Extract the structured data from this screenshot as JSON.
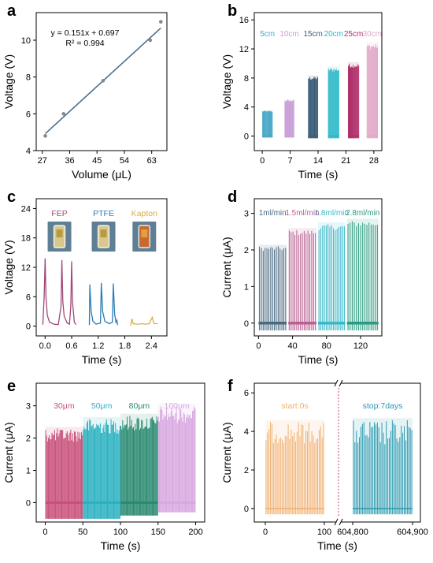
{
  "chart_data": [
    {
      "panel": "a",
      "type": "scatter",
      "xlabel": "Volume (μL)",
      "ylabel": "Voltage (V)",
      "xlim": [
        25,
        68
      ],
      "ylim": [
        4,
        11.5
      ],
      "xticks": [
        27,
        36,
        45,
        54,
        63
      ],
      "yticks": [
        4,
        6,
        8,
        10
      ],
      "points": [
        {
          "x": 28,
          "y": 4.8
        },
        {
          "x": 34,
          "y": 6.0
        },
        {
          "x": 47,
          "y": 7.8
        },
        {
          "x": 62.5,
          "y": 10.0
        },
        {
          "x": 66,
          "y": 11.0
        }
      ],
      "fit": {
        "slope": 0.151,
        "intercept": 0.697,
        "x": [
          28,
          66
        ]
      },
      "annotations": [
        "y = 0.151x + 0.697",
        "R² = 0.994"
      ]
    },
    {
      "panel": "b",
      "type": "line",
      "xlabel": "Time (s)",
      "ylabel": "Voltage (V)",
      "xlim": [
        -2,
        30
      ],
      "ylim": [
        -2,
        17
      ],
      "xticks": [
        0,
        7,
        14,
        21,
        28
      ],
      "yticks": [
        0,
        4,
        8,
        12,
        16
      ],
      "series": [
        {
          "name": "5cm",
          "x": [
            0,
            2.6
          ],
          "peak": 3.5,
          "low": -0.2,
          "color": "#4aa8c8"
        },
        {
          "name": "10cm",
          "x": [
            5.6,
            8.0
          ],
          "peak": 5.0,
          "low": -0.2,
          "color": "#c8a0d8"
        },
        {
          "name": "15cm",
          "x": [
            11.5,
            14.0
          ],
          "peak": 8.2,
          "low": -0.3,
          "color": "#3d5f78"
        },
        {
          "name": "20cm",
          "x": [
            16.5,
            19.3
          ],
          "peak": 9.4,
          "low": -0.3,
          "color": "#2ab7c6"
        },
        {
          "name": "25cm",
          "x": [
            21.5,
            24.3
          ],
          "peak": 10.0,
          "low": -0.3,
          "color": "#b0306a"
        },
        {
          "name": "30cm",
          "x": [
            26.2,
            29.0
          ],
          "peak": 12.7,
          "low": -0.3,
          "color": "#e0a8c8"
        }
      ]
    },
    {
      "panel": "c",
      "type": "line",
      "xlabel": "Time (s)",
      "ylabel": "Voltage (V)",
      "xlim": [
        -0.2,
        2.75
      ],
      "ylim": [
        -2,
        26
      ],
      "xticks": [
        0.0,
        0.6,
        1.2,
        1.8,
        2.4
      ],
      "yticks": [
        0,
        6,
        12,
        18,
        24
      ],
      "series": [
        {
          "name": "FEP",
          "color": "#a04878",
          "points": [
            [
              -0.05,
              0.3
            ],
            [
              -0.02,
              6
            ],
            [
              0.0,
              13.8
            ],
            [
              0.02,
              6
            ],
            [
              0.05,
              2.2
            ],
            [
              0.1,
              0.8
            ],
            [
              0.2,
              0.4
            ],
            [
              0.3,
              0.3
            ],
            [
              0.36,
              4
            ],
            [
              0.38,
              13.5
            ],
            [
              0.4,
              5
            ],
            [
              0.43,
              2
            ],
            [
              0.5,
              0.6
            ],
            [
              0.55,
              0.4
            ],
            [
              0.58,
              4
            ],
            [
              0.6,
              13.2
            ],
            [
              0.62,
              5
            ],
            [
              0.66,
              0.8
            ],
            [
              0.7,
              0.3
            ]
          ]
        },
        {
          "name": "PTFE",
          "color": "#2b7cb8",
          "points": [
            [
              1.0,
              0.2
            ],
            [
              1.01,
              8.5
            ],
            [
              1.04,
              3
            ],
            [
              1.08,
              1
            ],
            [
              1.15,
              0.4
            ],
            [
              1.25,
              0.6
            ],
            [
              1.27,
              8.8
            ],
            [
              1.3,
              3
            ],
            [
              1.35,
              1
            ],
            [
              1.45,
              0.5
            ],
            [
              1.52,
              0.8
            ],
            [
              1.54,
              8.7
            ],
            [
              1.57,
              2.5
            ],
            [
              1.6,
              0.8
            ],
            [
              1.62,
              1.2
            ],
            [
              1.64,
              0.2
            ]
          ]
        },
        {
          "name": "Kapton",
          "color": "#d8b040",
          "points": [
            [
              1.93,
              0.1
            ],
            [
              1.96,
              1.5
            ],
            [
              1.99,
              0.5
            ],
            [
              2.1,
              0.4
            ],
            [
              2.2,
              0.5
            ],
            [
              2.25,
              0.4
            ],
            [
              2.35,
              0.5
            ],
            [
              2.42,
              1.8
            ],
            [
              2.46,
              0.5
            ],
            [
              2.55,
              0.5
            ]
          ]
        }
      ]
    },
    {
      "panel": "d",
      "type": "line",
      "xlabel": "Time (s)",
      "ylabel": "Current (μA)",
      "xlim": [
        -5,
        145
      ],
      "ylim": [
        -0.35,
        3.4
      ],
      "xticks": [
        0,
        40,
        80,
        120
      ],
      "yticks": [
        0,
        1,
        2,
        3
      ],
      "series": [
        {
          "name": "1ml/min",
          "x": [
            0,
            33
          ],
          "peak": 2.1,
          "low": -0.2,
          "color": "#4a6a80"
        },
        {
          "name": "1.5ml/min",
          "x": [
            35,
            68
          ],
          "peak": 2.55,
          "low": -0.2,
          "color": "#b86090"
        },
        {
          "name": "1.8ml/min",
          "x": [
            70,
            102
          ],
          "peak": 2.7,
          "low": -0.2,
          "color": "#3ab8c8"
        },
        {
          "name": "2.8ml/min",
          "x": [
            104,
            141
          ],
          "peak": 2.8,
          "low": -0.2,
          "color": "#2a9a80"
        }
      ]
    },
    {
      "panel": "e",
      "type": "line",
      "xlabel": "Time (s)",
      "ylabel": "Current (μA)",
      "xlim": [
        -12,
        212
      ],
      "ylim": [
        -0.6,
        3.7
      ],
      "xticks": [
        0,
        50,
        100,
        150,
        200
      ],
      "yticks": [
        0,
        1,
        2,
        3
      ],
      "series": [
        {
          "name": "30μm",
          "x": [
            0,
            50
          ],
          "peak": 2.3,
          "low": -0.5,
          "color": "#c8507a"
        },
        {
          "name": "50μm",
          "x": [
            50,
            100
          ],
          "peak": 2.6,
          "low": -0.5,
          "color": "#2ab0c0"
        },
        {
          "name": "80μm",
          "x": [
            100,
            150
          ],
          "peak": 2.7,
          "low": -0.4,
          "color": "#2a8a70"
        },
        {
          "name": "100μm",
          "x": [
            150,
            200
          ],
          "peak": 3.0,
          "low": -0.3,
          "color": "#d8a8e0"
        }
      ]
    },
    {
      "panel": "f",
      "type": "line",
      "xlabel": "Time (s)",
      "ylabel": "Current (μA)",
      "ylim": [
        -0.7,
        6.5
      ],
      "yticks": [
        0,
        2,
        4,
        6
      ],
      "xticks_left": [
        "0",
        "100"
      ],
      "xticks_right": [
        "604,800",
        "604,900"
      ],
      "broken_axis": true,
      "series": [
        {
          "name": "start:0s",
          "x": [
            0,
            100
          ],
          "peak": 4.5,
          "low": -0.3,
          "color": "#f0b070"
        },
        {
          "name": "stop:7days",
          "x": [
            604800,
            604900
          ],
          "peak": 4.6,
          "low": -0.3,
          "color": "#2a9ab0"
        }
      ]
    }
  ]
}
